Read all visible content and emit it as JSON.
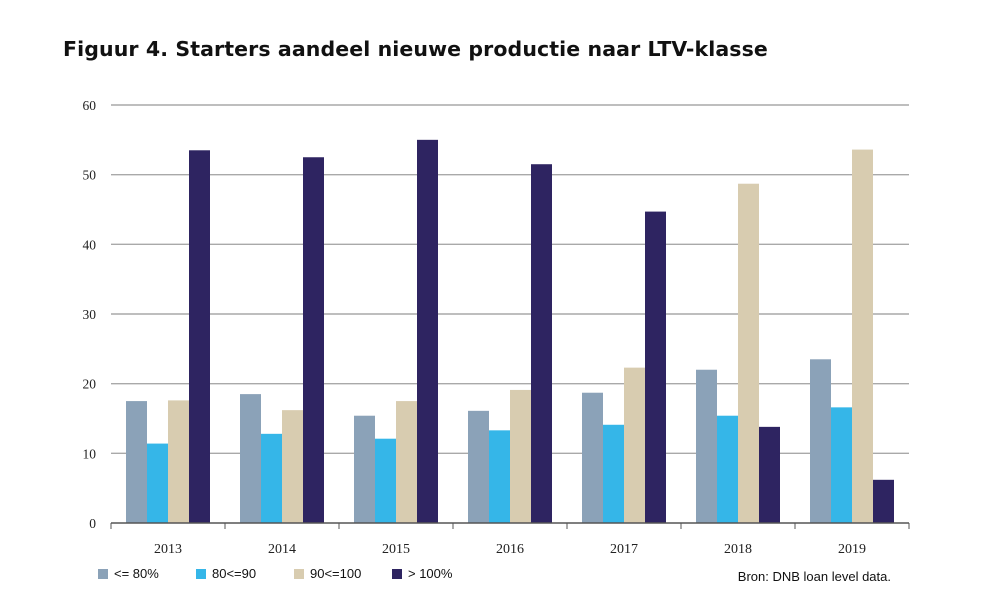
{
  "header": {
    "title": "Figuur 4. Starters aandeel nieuwe productie naar LTV-klasse"
  },
  "colors": {
    "series": [
      "#8ba2b8",
      "#35b6e8",
      "#d8ccb0",
      "#2e2461"
    ],
    "grid": "#a9a9a9",
    "axis": "#555555"
  },
  "chart_data": {
    "type": "bar",
    "categories": [
      "2013",
      "2014",
      "2015",
      "2016",
      "2017",
      "2018",
      "2019"
    ],
    "series": [
      {
        "name": "<= 80%",
        "values": [
          17.5,
          18.5,
          15.4,
          16.1,
          18.7,
          22.0,
          23.5
        ]
      },
      {
        "name": "80<=90",
        "values": [
          11.4,
          12.8,
          12.1,
          13.3,
          14.1,
          15.4,
          16.6
        ]
      },
      {
        "name": "90<=100",
        "values": [
          17.6,
          16.2,
          17.5,
          19.1,
          22.3,
          48.7,
          53.6
        ]
      },
      {
        "name": "> 100%",
        "values": [
          53.5,
          52.5,
          55.0,
          51.5,
          44.7,
          13.8,
          6.2
        ]
      }
    ],
    "ylim": [
      0,
      60
    ],
    "yticks": [
      0,
      10,
      20,
      30,
      40,
      50,
      60
    ],
    "xlabel": "",
    "ylabel": "",
    "grid": true,
    "legend_position": "bottom-left"
  },
  "footer": {
    "source": "Bron: DNB loan level data."
  }
}
